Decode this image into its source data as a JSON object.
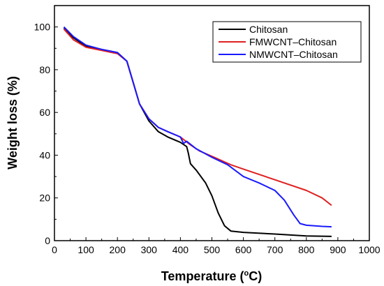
{
  "chart_data": {
    "type": "line",
    "xlabel": "Temperature",
    "xlabel_unit_prefix": "(",
    "xlabel_unit_sup": "o",
    "xlabel_unit_suffix": "C)",
    "ylabel": "Weight loss (%)",
    "xlim": [
      0,
      1000
    ],
    "ylim": [
      0,
      110
    ],
    "x_ticks": [
      0,
      100,
      200,
      300,
      400,
      500,
      600,
      700,
      800,
      900,
      1000
    ],
    "y_ticks": [
      0,
      20,
      40,
      60,
      80,
      100
    ],
    "x_tick_labels": [
      "0",
      "100",
      "200",
      "300",
      "400",
      "500",
      "600",
      "700",
      "800",
      "900",
      "1000"
    ],
    "y_tick_labels": [
      "0",
      "20",
      "40",
      "60",
      "80",
      "100"
    ],
    "grid": false,
    "legend_position": "top-right",
    "series": [
      {
        "name": "Chitosan",
        "color": "#000000",
        "points": [
          [
            30,
            99.5
          ],
          [
            60,
            95
          ],
          [
            100,
            91
          ],
          [
            150,
            89.5
          ],
          [
            200,
            88
          ],
          [
            230,
            84
          ],
          [
            250,
            74
          ],
          [
            270,
            64
          ],
          [
            300,
            56
          ],
          [
            330,
            51
          ],
          [
            360,
            48.5
          ],
          [
            400,
            46
          ],
          [
            420,
            44
          ],
          [
            425,
            41
          ],
          [
            432,
            36
          ],
          [
            450,
            33
          ],
          [
            480,
            27
          ],
          [
            500,
            21
          ],
          [
            520,
            13
          ],
          [
            540,
            7
          ],
          [
            560,
            4.5
          ],
          [
            600,
            3.9
          ],
          [
            700,
            3.1
          ],
          [
            800,
            2.2
          ],
          [
            880,
            2
          ]
        ]
      },
      {
        "name": "FMWCNT–Chitosan",
        "color": "#e02020",
        "points": [
          [
            30,
            99
          ],
          [
            60,
            94
          ],
          [
            100,
            90.5
          ],
          [
            150,
            89
          ],
          [
            200,
            87.5
          ],
          [
            230,
            84
          ],
          [
            250,
            74
          ],
          [
            270,
            64
          ],
          [
            300,
            57
          ],
          [
            330,
            53
          ],
          [
            360,
            51
          ],
          [
            400,
            48.5
          ],
          [
            430,
            45
          ],
          [
            460,
            42
          ],
          [
            500,
            39.5
          ],
          [
            560,
            35.5
          ],
          [
            600,
            33.5
          ],
          [
            700,
            28.5
          ],
          [
            800,
            23.5
          ],
          [
            850,
            20
          ],
          [
            880,
            16.5
          ]
        ]
      },
      {
        "name": "NMWCNT–Chitosan",
        "color": "#1a1aff",
        "points": [
          [
            30,
            100
          ],
          [
            60,
            95.5
          ],
          [
            100,
            91.5
          ],
          [
            150,
            89.5
          ],
          [
            200,
            88
          ],
          [
            230,
            84
          ],
          [
            250,
            74
          ],
          [
            270,
            64
          ],
          [
            300,
            57
          ],
          [
            330,
            53
          ],
          [
            360,
            51
          ],
          [
            400,
            48.5
          ],
          [
            410,
            45.5
          ],
          [
            420,
            46.5
          ],
          [
            450,
            43
          ],
          [
            500,
            39
          ],
          [
            550,
            35.5
          ],
          [
            600,
            30
          ],
          [
            650,
            27
          ],
          [
            700,
            23.5
          ],
          [
            730,
            19
          ],
          [
            760,
            12
          ],
          [
            780,
            8
          ],
          [
            800,
            7.2
          ],
          [
            850,
            6.7
          ],
          [
            880,
            6.5
          ]
        ]
      }
    ]
  }
}
